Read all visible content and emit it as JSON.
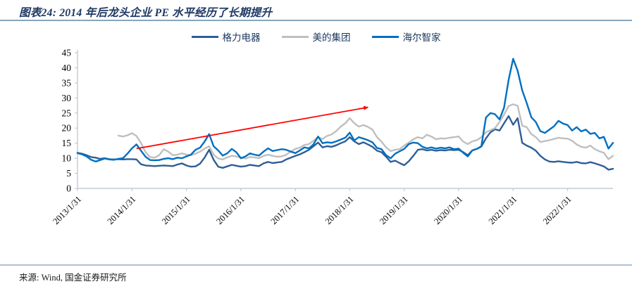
{
  "title": "图表24: 2014 年后龙头企业 PE 水平经历了长期提升",
  "source": "来源: Wind, 国金证券研究所",
  "colors": {
    "title_text": "#1f3864",
    "title_rule": "#87a5bc",
    "bottom_rule": "#aec2d3",
    "axis_line": "#c3cbd3",
    "axis_text": "#000000",
    "arrow": "#ff0000"
  },
  "chart_data": {
    "type": "line",
    "title": "图表24: 2014 年后龙头企业 PE 水平经历了长期提升",
    "xlabel": "",
    "ylabel": "",
    "x_frequency": "monthly",
    "x_start": "2013/1/31",
    "x_end": "2022/11/30",
    "x_tick_labels": [
      "2013/1/31",
      "2014/1/31",
      "2015/1/31",
      "2016/1/31",
      "2017/1/31",
      "2018/1/31",
      "2019/1/31",
      "2020/1/31",
      "2021/1/31",
      "2022/1/31"
    ],
    "y_ticks": [
      0,
      5,
      10,
      15,
      20,
      25,
      30,
      35,
      40,
      45
    ],
    "ylim": [
      0,
      45
    ],
    "grid": false,
    "legend_position": "top-center",
    "series": [
      {
        "name": "格力电器",
        "color": "#2e5e97",
        "values": [
          11.8,
          11.5,
          11.0,
          10.4,
          10.2,
          9.8,
          10.0,
          9.7,
          9.6,
          9.7,
          9.6,
          9.7,
          9.7,
          9.6,
          8.0,
          7.6,
          7.5,
          7.4,
          7.5,
          7.6,
          7.5,
          7.4,
          7.9,
          8.3,
          7.6,
          7.2,
          7.3,
          8.2,
          10.2,
          12.8,
          9.5,
          7.2,
          6.8,
          7.3,
          7.8,
          7.5,
          7.2,
          7.4,
          7.8,
          7.6,
          7.4,
          8.3,
          8.8,
          8.4,
          8.6,
          8.8,
          9.6,
          10.2,
          10.8,
          11.3,
          12.0,
          12.8,
          14.0,
          15.2,
          13.6,
          14.0,
          13.8,
          14.3,
          15.0,
          15.6,
          17.0,
          15.6,
          14.7,
          15.3,
          14.6,
          13.8,
          12.5,
          12.0,
          10.5,
          8.8,
          9.2,
          8.4,
          7.7,
          9.0,
          10.8,
          12.8,
          13.0,
          12.6,
          12.8,
          12.5,
          12.7,
          12.6,
          12.8,
          12.7,
          12.8,
          12.0,
          11.0,
          12.6,
          13.1,
          13.9,
          16.6,
          18.6,
          19.6,
          19.2,
          21.6,
          24.0,
          21.1,
          23.3,
          15.1,
          14.2,
          13.5,
          12.5,
          10.8,
          9.6,
          8.9,
          8.8,
          9.0,
          8.8,
          8.6,
          8.5,
          8.8,
          8.4,
          8.3,
          8.7,
          8.3,
          7.8,
          7.3,
          6.2,
          6.5
        ]
      },
      {
        "name": "美的集团",
        "color": "#bfbfbf",
        "values": [
          null,
          null,
          null,
          null,
          null,
          null,
          null,
          null,
          null,
          17.5,
          17.2,
          17.6,
          18.3,
          17.4,
          15.0,
          12.0,
          10.4,
          10.2,
          11.0,
          13.0,
          12.2,
          11.0,
          11.2,
          11.6,
          11.2,
          11.0,
          11.5,
          12.2,
          13.2,
          14.0,
          11.2,
          9.9,
          9.6,
          10.3,
          10.8,
          10.6,
          10.2,
          9.9,
          10.4,
          10.3,
          10.0,
          10.8,
          11.2,
          10.8,
          10.5,
          10.6,
          11.2,
          12.2,
          13.1,
          13.5,
          14.4,
          14.7,
          15.8,
          17.0,
          16.4,
          17.4,
          17.9,
          19.0,
          20.5,
          21.6,
          23.3,
          21.6,
          20.5,
          21.0,
          20.4,
          19.5,
          17.0,
          15.5,
          13.6,
          12.4,
          12.8,
          13.0,
          14.2,
          15.2,
          16.3,
          17.0,
          16.6,
          17.8,
          17.2,
          16.3,
          16.6,
          16.5,
          16.8,
          17.0,
          17.2,
          15.5,
          14.7,
          15.6,
          16.0,
          17.0,
          18.6,
          19.3,
          20.0,
          22.0,
          24.5,
          27.3,
          27.9,
          27.4,
          20.8,
          20.3,
          18.0,
          17.0,
          15.4,
          15.7,
          16.0,
          16.4,
          16.8,
          16.6,
          16.5,
          15.8,
          14.6,
          13.8,
          13.5,
          14.2,
          13.0,
          12.3,
          11.8,
          9.7,
          10.8
        ]
      },
      {
        "name": "海尔智家",
        "color": "#0070c0",
        "values": [
          11.7,
          11.3,
          10.6,
          9.5,
          8.9,
          9.4,
          9.9,
          9.6,
          9.5,
          9.8,
          10.0,
          11.5,
          13.3,
          14.6,
          12.5,
          10.5,
          9.4,
          9.3,
          9.4,
          9.8,
          10.0,
          9.7,
          10.2,
          10.0,
          10.6,
          11.2,
          12.8,
          13.5,
          15.5,
          18.0,
          14.0,
          12.6,
          10.9,
          11.6,
          13.1,
          12.0,
          10.0,
          10.6,
          11.6,
          11.2,
          10.9,
          12.2,
          13.3,
          12.4,
          12.7,
          13.0,
          12.8,
          12.2,
          11.7,
          12.6,
          13.6,
          13.3,
          14.6,
          17.2,
          15.0,
          15.3,
          15.1,
          15.6,
          16.2,
          16.8,
          18.5,
          15.9,
          17.0,
          16.5,
          16.0,
          15.3,
          13.4,
          13.0,
          11.0,
          10.0,
          11.5,
          12.3,
          13.1,
          14.7,
          15.2,
          15.0,
          13.8,
          13.3,
          13.6,
          13.2,
          13.5,
          13.3,
          13.6,
          13.0,
          13.2,
          11.8,
          10.6,
          12.6,
          13.1,
          14.0,
          23.5,
          25.0,
          24.6,
          22.9,
          26.8,
          36.0,
          43.0,
          39.0,
          32.5,
          28.3,
          23.6,
          22.0,
          19.0,
          18.4,
          19.5,
          20.6,
          22.4,
          21.5,
          21.0,
          19.2,
          20.3,
          18.9,
          19.5,
          18.1,
          18.4,
          16.6,
          17.1,
          13.2,
          15.1
        ]
      }
    ],
    "annotation": {
      "type": "arrow",
      "color": "#ff0000",
      "from": {
        "month_index": 13,
        "value": 13.2
      },
      "to": {
        "month_index": 64,
        "value": 26.9
      }
    }
  }
}
